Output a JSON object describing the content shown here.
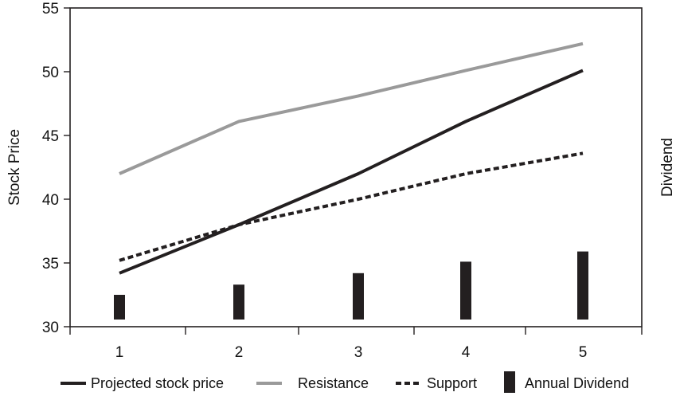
{
  "chart_data": {
    "type": "line",
    "categories": [
      "1",
      "2",
      "3",
      "4",
      "5"
    ],
    "x": [
      1,
      2,
      3,
      4,
      5
    ],
    "ylabel": "Stock Price",
    "y2label": "Dividend",
    "ylim": [
      30,
      55
    ],
    "yticks": [
      "30",
      "35",
      "40",
      "45",
      "50",
      "55"
    ],
    "grid": false,
    "series": [
      {
        "name": "Projected stock price",
        "kind": "line",
        "style": "solid",
        "color": "#231f20",
        "values": [
          34.2,
          38.0,
          42.0,
          46.1,
          50.1
        ]
      },
      {
        "name": "Resistance",
        "kind": "line",
        "style": "solid",
        "color": "#9a9a9a",
        "values": [
          42.0,
          46.1,
          48.1,
          50.1,
          52.2
        ]
      },
      {
        "name": "Support",
        "kind": "line",
        "style": "dashed",
        "color": "#231f20",
        "values": [
          35.2,
          38.0,
          40.0,
          42.0,
          43.6
        ]
      },
      {
        "name": "Annual Dividend",
        "kind": "bar",
        "color": "#231f20",
        "values": [
          32.5,
          33.3,
          34.2,
          35.1,
          35.9
        ]
      }
    ],
    "legend": {
      "position": "bottom",
      "items": [
        "Projected stock price",
        "Resistance",
        "Support",
        "Annual Dividend"
      ]
    }
  }
}
